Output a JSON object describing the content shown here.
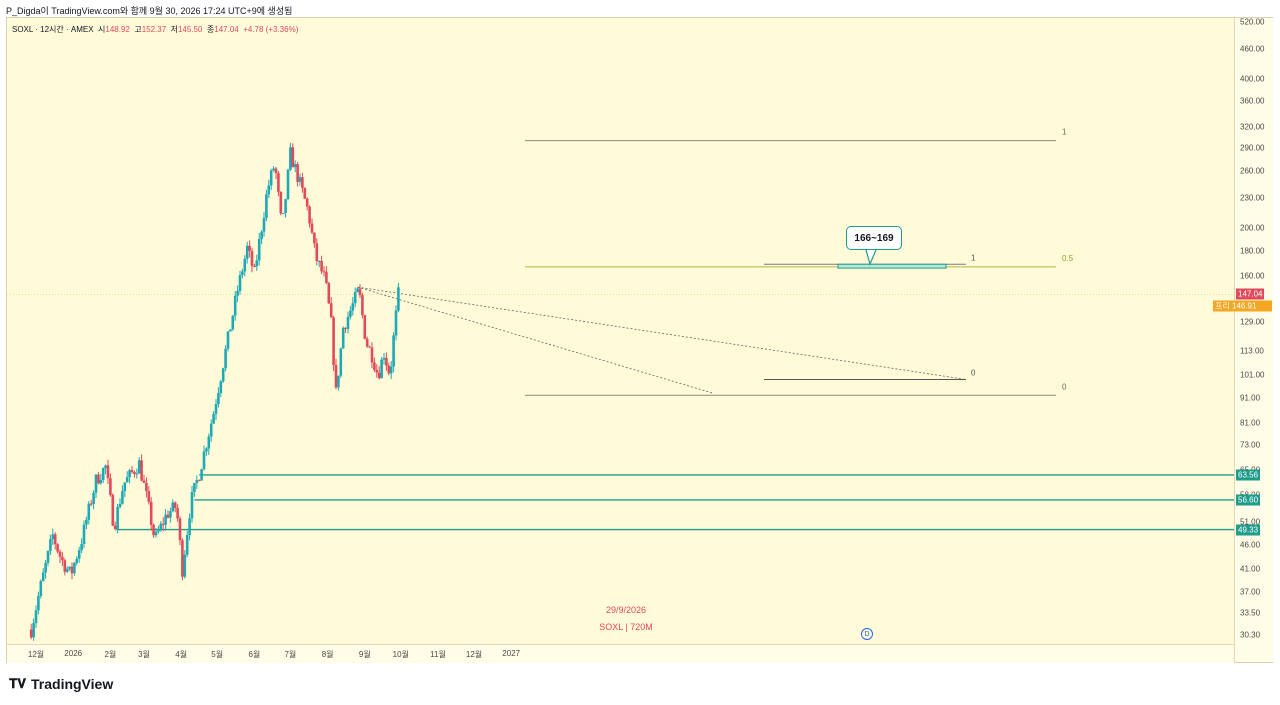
{
  "header": {
    "publish_line": "P_Digda이 TradingView.com와 함께 9월 30, 2026 17:24 UTC+9에 생성됨"
  },
  "legend": {
    "symbol": "SOXL · 12시간 · AMEX",
    "open_label": "시",
    "open": "148.92",
    "high_label": "고",
    "high": "152.37",
    "low_label": "저",
    "low": "145.50",
    "close_label": "종",
    "close": "147.04",
    "change": "+4.78 (+3.36%)"
  },
  "chart_data": {
    "type": "candlestick",
    "symbol": "SOXL",
    "interval": "12시간",
    "exchange": "AMEX",
    "y_scale": "log",
    "ylim": [
      29,
      530
    ],
    "y_ticks": [
      "520.00",
      "460.00",
      "400.00",
      "360.00",
      "320.00",
      "290.00",
      "260.00",
      "230.00",
      "200.00",
      "180.00",
      "160.00",
      "129.00",
      "113.00",
      "101.00",
      "91.00",
      "81.00",
      "73.00",
      "65.00",
      "58.00",
      "51.00",
      "46.00",
      "41.00",
      "37.00",
      "33.50",
      "30.30"
    ],
    "x_ticks": [
      "12월",
      "2026",
      "2월",
      "3월",
      "4월",
      "5월",
      "6월",
      "7월",
      "8월",
      "9월",
      "10월",
      "11월",
      "12월",
      "2027"
    ],
    "price_path": [
      {
        "date": "2025-11-27",
        "price": 31
      },
      {
        "date": "2025-12-05",
        "price": 38
      },
      {
        "date": "2025-12-15",
        "price": 48
      },
      {
        "date": "2025-12-22",
        "price": 43
      },
      {
        "date": "2025-12-30",
        "price": 40
      },
      {
        "date": "2026-01-08",
        "price": 47
      },
      {
        "date": "2026-01-20",
        "price": 62
      },
      {
        "date": "2026-01-28",
        "price": 66
      },
      {
        "date": "2026-02-04",
        "price": 50
      },
      {
        "date": "2026-02-12",
        "price": 61
      },
      {
        "date": "2026-02-25",
        "price": 67
      },
      {
        "date": "2026-03-04",
        "price": 56
      },
      {
        "date": "2026-03-10",
        "price": 47
      },
      {
        "date": "2026-03-20",
        "price": 53
      },
      {
        "date": "2026-03-28",
        "price": 55
      },
      {
        "date": "2026-04-02",
        "price": 41
      },
      {
        "date": "2026-04-09",
        "price": 56
      },
      {
        "date": "2026-04-16",
        "price": 64
      },
      {
        "date": "2026-04-28",
        "price": 85
      },
      {
        "date": "2026-05-08",
        "price": 113
      },
      {
        "date": "2026-05-18",
        "price": 150
      },
      {
        "date": "2026-05-26",
        "price": 182
      },
      {
        "date": "2026-06-01",
        "price": 162
      },
      {
        "date": "2026-06-12",
        "price": 240
      },
      {
        "date": "2026-06-18",
        "price": 270
      },
      {
        "date": "2026-06-24",
        "price": 198
      },
      {
        "date": "2026-07-01",
        "price": 282
      },
      {
        "date": "2026-07-08",
        "price": 250
      },
      {
        "date": "2026-07-16",
        "price": 215
      },
      {
        "date": "2026-07-22",
        "price": 175
      },
      {
        "date": "2026-07-30",
        "price": 157
      },
      {
        "date": "2026-08-04",
        "price": 128
      },
      {
        "date": "2026-08-08",
        "price": 93
      },
      {
        "date": "2026-08-14",
        "price": 126
      },
      {
        "date": "2026-08-21",
        "price": 138
      },
      {
        "date": "2026-08-27",
        "price": 150
      },
      {
        "date": "2026-09-02",
        "price": 118
      },
      {
        "date": "2026-09-07",
        "price": 111
      },
      {
        "date": "2026-09-12",
        "price": 101
      },
      {
        "date": "2026-09-17",
        "price": 112
      },
      {
        "date": "2026-09-22",
        "price": 101
      },
      {
        "date": "2026-09-26",
        "price": 127
      },
      {
        "date": "2026-09-29",
        "price": 147
      }
    ],
    "last_price": "147.04",
    "pre_market_label": "프리",
    "pre_market_price": "146.91",
    "horizontal_levels": [
      {
        "value": "63.56",
        "color": "#1e9c8c"
      },
      {
        "value": "56.60",
        "color": "#1e9c8c"
      },
      {
        "value": "49.33",
        "color": "#1e9c8c"
      }
    ],
    "fib_large": {
      "level_1": "1",
      "level_05": "0.5",
      "level_0": "0",
      "top": 300,
      "mid": 167,
      "bottom": 92
    },
    "fib_small": {
      "level_1": "1",
      "level_0": "0",
      "top": 169,
      "bottom": 99
    },
    "target_zone": {
      "label": "166~169",
      "low": 166,
      "high": 169
    },
    "triangle": {
      "apex_date": "2026-08-26",
      "upper_start": 152,
      "lower": 99
    },
    "watermark_date": "29/9/2026",
    "watermark_symbol": "SOXL | 720M",
    "dividend_marker": "D",
    "colors": {
      "up": "#1fa9b5",
      "down": "#e24a5b",
      "level": "#1e9c8c",
      "fib": "#8e8b3a",
      "badge_last": "#e24a5b",
      "badge_pre": "#f5a623"
    }
  },
  "footer": {
    "brand": "TradingView"
  }
}
